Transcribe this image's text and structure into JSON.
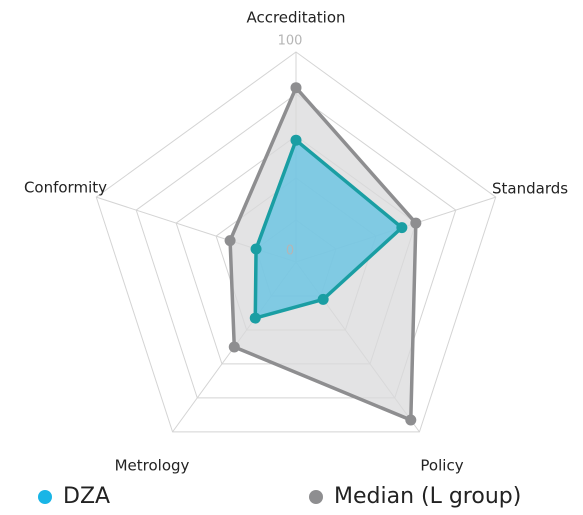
{
  "chart_data": {
    "type": "radar",
    "categories": [
      "Accreditation",
      "Standards",
      "Policy",
      "Metrology",
      "Conformity"
    ],
    "series": [
      {
        "name": "Median (L group)",
        "color": "#8e8e90",
        "fill": "#d9d9db",
        "values": [
          83,
          60,
          93,
          50,
          33
        ]
      },
      {
        "name": "DZA",
        "color": "#1a9ea3",
        "fill": "#5fc1e3",
        "legend_color": "#19b5e6",
        "values": [
          58,
          53,
          22,
          33,
          20
        ]
      }
    ],
    "ylim": [
      0,
      100
    ],
    "yticks": [
      0,
      100
    ],
    "grid": true
  }
}
